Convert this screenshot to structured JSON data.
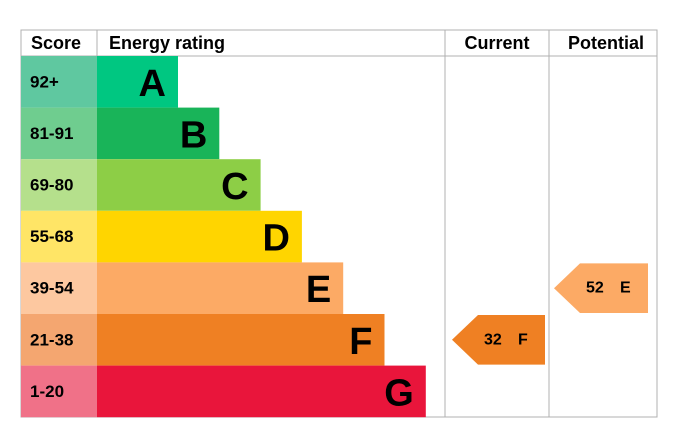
{
  "header": {
    "score": "Score",
    "energy_rating": "Energy rating",
    "current": "Current",
    "potential": "Potential"
  },
  "bands": [
    {
      "score": "92+",
      "rating": "A",
      "color": "#00c781",
      "score_color": "#5fc8a0"
    },
    {
      "score": "81-91",
      "rating": "B",
      "color": "#19b459",
      "score_color": "#6fcd8f"
    },
    {
      "score": "69-80",
      "rating": "C",
      "color": "#8dce46",
      "score_color": "#b5e08c"
    },
    {
      "score": "55-68",
      "rating": "D",
      "color": "#ffd500",
      "score_color": "#ffe566"
    },
    {
      "score": "39-54",
      "rating": "E",
      "color": "#fcaa65",
      "score_color": "#fdc8a0"
    },
    {
      "score": "21-38",
      "rating": "F",
      "color": "#ef8023",
      "score_color": "#f4a670"
    },
    {
      "score": "1-20",
      "rating": "G",
      "color": "#e9153b",
      "score_color": "#f07188"
    }
  ],
  "current": {
    "value": 32,
    "rating": "F"
  },
  "potential": {
    "value": 52,
    "rating": "E"
  }
}
